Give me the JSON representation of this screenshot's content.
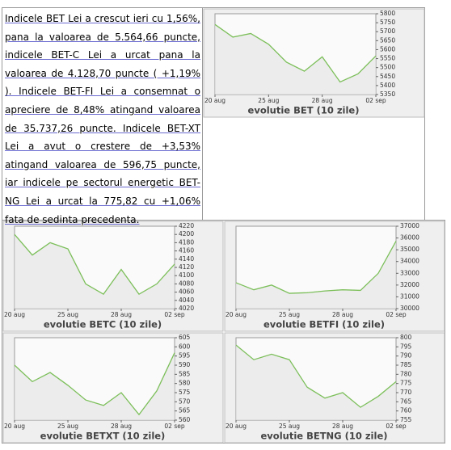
{
  "document": {
    "paragraph": "Indicele BET Lei a crescut ieri cu 1,56%, pana la valoarea de 5.564,66 puncte, indicele BET-C Lei a urcat pana la valoarea de 4.128,70 puncte ( +1,19% ). Indicele BET-FI Lei a consemnat o apreciere de 8,48% atingand valoarea de 35.737,26 puncte. Indicele BET-XT Lei a avut o crestere de +3,53% atingand valoarea de 596,75 puncte, iar indicele pe sectorul energetic BET-NG Lei a urcat la 775,82 cu +1,06% fata de sedinta precedenta."
  },
  "chart_data": [
    {
      "type": "line",
      "title": "evolutie BET (10 zile)",
      "categories": [
        "20 aug",
        null,
        null,
        "25 aug",
        null,
        null,
        "28 aug",
        null,
        null,
        "02 sep"
      ],
      "values": [
        5740,
        5670,
        5690,
        5630,
        5530,
        5480,
        5560,
        5420,
        5465,
        5565
      ],
      "color": "#7cbf5a",
      "ylim": [
        5350,
        5800
      ],
      "yticks": [
        5350,
        5400,
        5450,
        5500,
        5550,
        5600,
        5650,
        5700,
        5750,
        5800
      ]
    },
    {
      "type": "line",
      "title": "evolutie BETC (10 zile)",
      "categories": [
        "20 aug",
        null,
        null,
        "25 aug",
        null,
        null,
        "28 aug",
        null,
        null,
        "02 sep"
      ],
      "values": [
        4200,
        4150,
        4180,
        4165,
        4080,
        4055,
        4115,
        4055,
        4080,
        4128
      ],
      "color": "#7cbf5a",
      "ylim": [
        4020,
        4220
      ],
      "yticks": [
        4020,
        4040,
        4060,
        4080,
        4100,
        4120,
        4140,
        4160,
        4180,
        4200,
        4220
      ]
    },
    {
      "type": "line",
      "title": "evolutie BETFI (10 zile)",
      "categories": [
        "20 aug",
        null,
        null,
        "25 aug",
        null,
        null,
        "28 aug",
        null,
        null,
        "02 sep"
      ],
      "values": [
        32200,
        31600,
        32000,
        31300,
        31350,
        31500,
        31600,
        31550,
        33000,
        35737
      ],
      "color": "#7cbf5a",
      "ylim": [
        30000,
        37000
      ],
      "yticks": [
        30000,
        31000,
        32000,
        33000,
        34000,
        35000,
        36000,
        37000
      ]
    },
    {
      "type": "line",
      "title": "evolutie BETXT (10 zile)",
      "categories": [
        "20 aug",
        null,
        null,
        "25 aug",
        null,
        null,
        "28 aug",
        null,
        null,
        "02 sep"
      ],
      "values": [
        590,
        581,
        586,
        579,
        571,
        568,
        575,
        563,
        576,
        596.75
      ],
      "color": "#7cbf5a",
      "ylim": [
        560,
        605
      ],
      "yticks": [
        560,
        565,
        570,
        575,
        580,
        585,
        590,
        595,
        600,
        605
      ]
    },
    {
      "type": "line",
      "title": "evolutie BETNG (10 zile)",
      "categories": [
        "20 aug",
        null,
        null,
        "25 aug",
        null,
        null,
        "28 aug",
        null,
        null,
        "02 sep"
      ],
      "values": [
        796,
        788,
        791,
        788,
        773,
        767,
        770,
        762,
        768,
        776
      ],
      "color": "#7cbf5a",
      "ylim": [
        755,
        800
      ],
      "yticks": [
        755,
        760,
        765,
        770,
        775,
        780,
        785,
        790,
        795,
        800
      ]
    }
  ]
}
